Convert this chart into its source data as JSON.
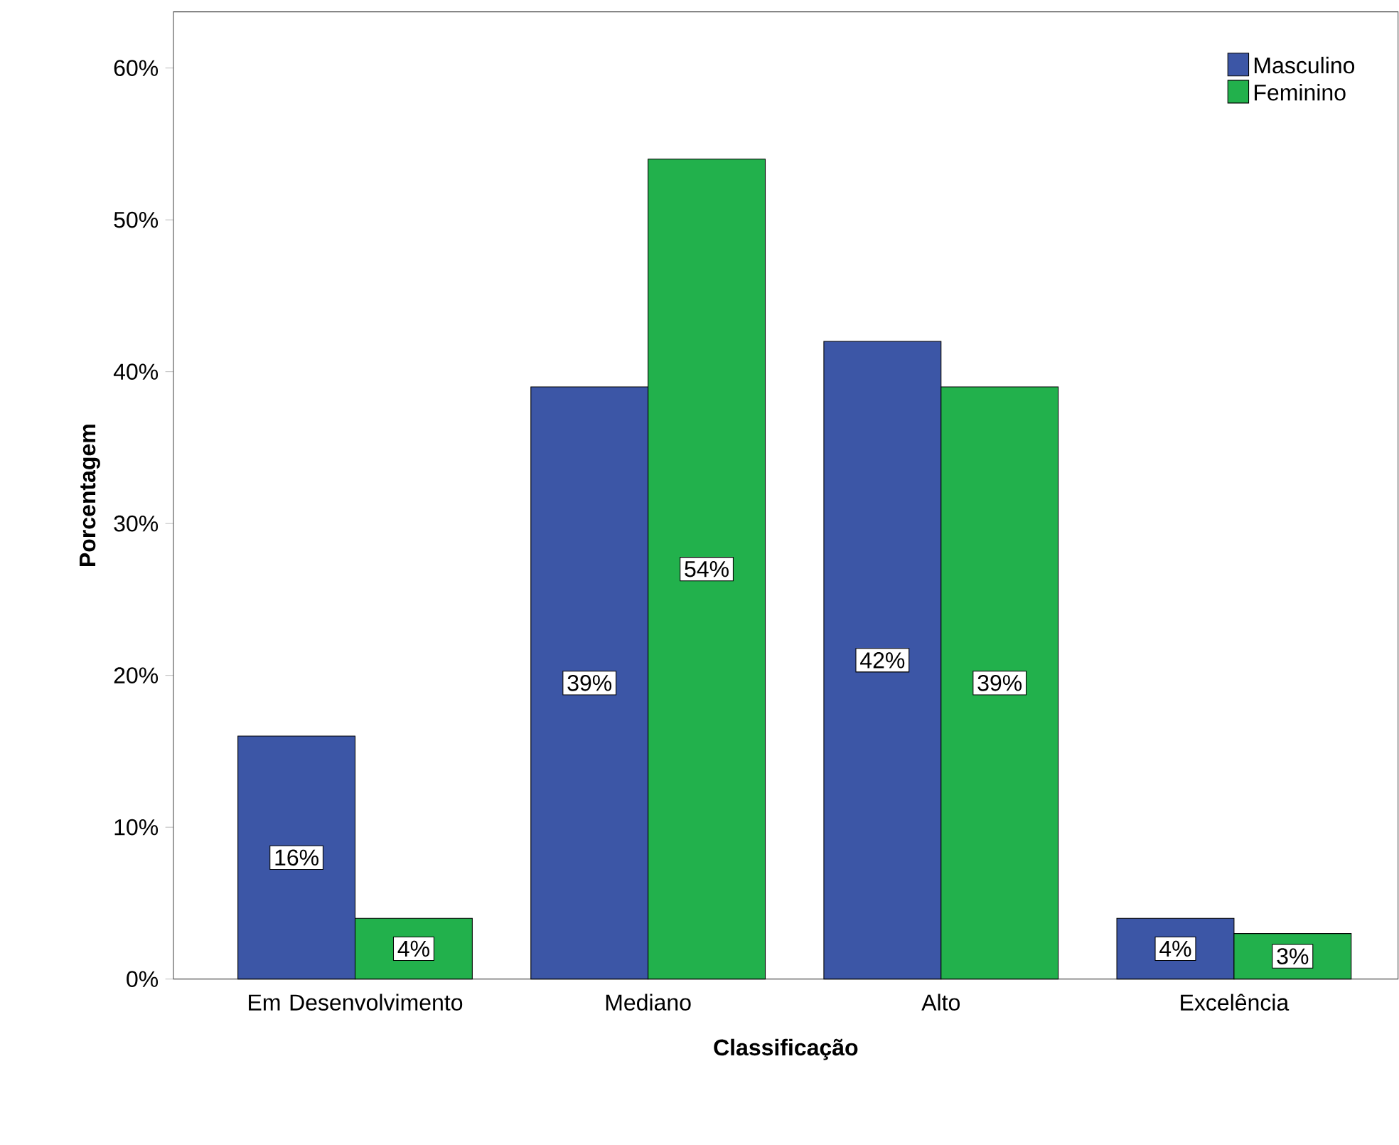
{
  "chart_data": {
    "type": "bar",
    "xlabel": "Classificação",
    "ylabel": "Porcentagem",
    "categories": [
      "Em Desenvolvimento",
      "Mediano",
      "Alto",
      "Excelência"
    ],
    "series": [
      {
        "name": "Masculino",
        "color": "#3c56a6",
        "values": [
          16,
          39,
          42,
          4
        ],
        "value_labels": [
          "16%",
          "39%",
          "42%",
          "4%"
        ]
      },
      {
        "name": "Feminino",
        "color": "#22b14c",
        "values": [
          4,
          54,
          39,
          3
        ],
        "value_labels": [
          "4%",
          "54%",
          "39%",
          "3%"
        ]
      }
    ],
    "ylim": [
      0,
      63.7
    ],
    "yticks": [
      {
        "value": 0,
        "label": "0%"
      },
      {
        "value": 10,
        "label": "10%"
      },
      {
        "value": 20,
        "label": "20%"
      },
      {
        "value": 30,
        "label": "30%"
      },
      {
        "value": 40,
        "label": "40%"
      },
      {
        "value": 50,
        "label": "50%"
      },
      {
        "value": 60,
        "label": "60%"
      }
    ],
    "legend": "top right",
    "grid": false
  }
}
